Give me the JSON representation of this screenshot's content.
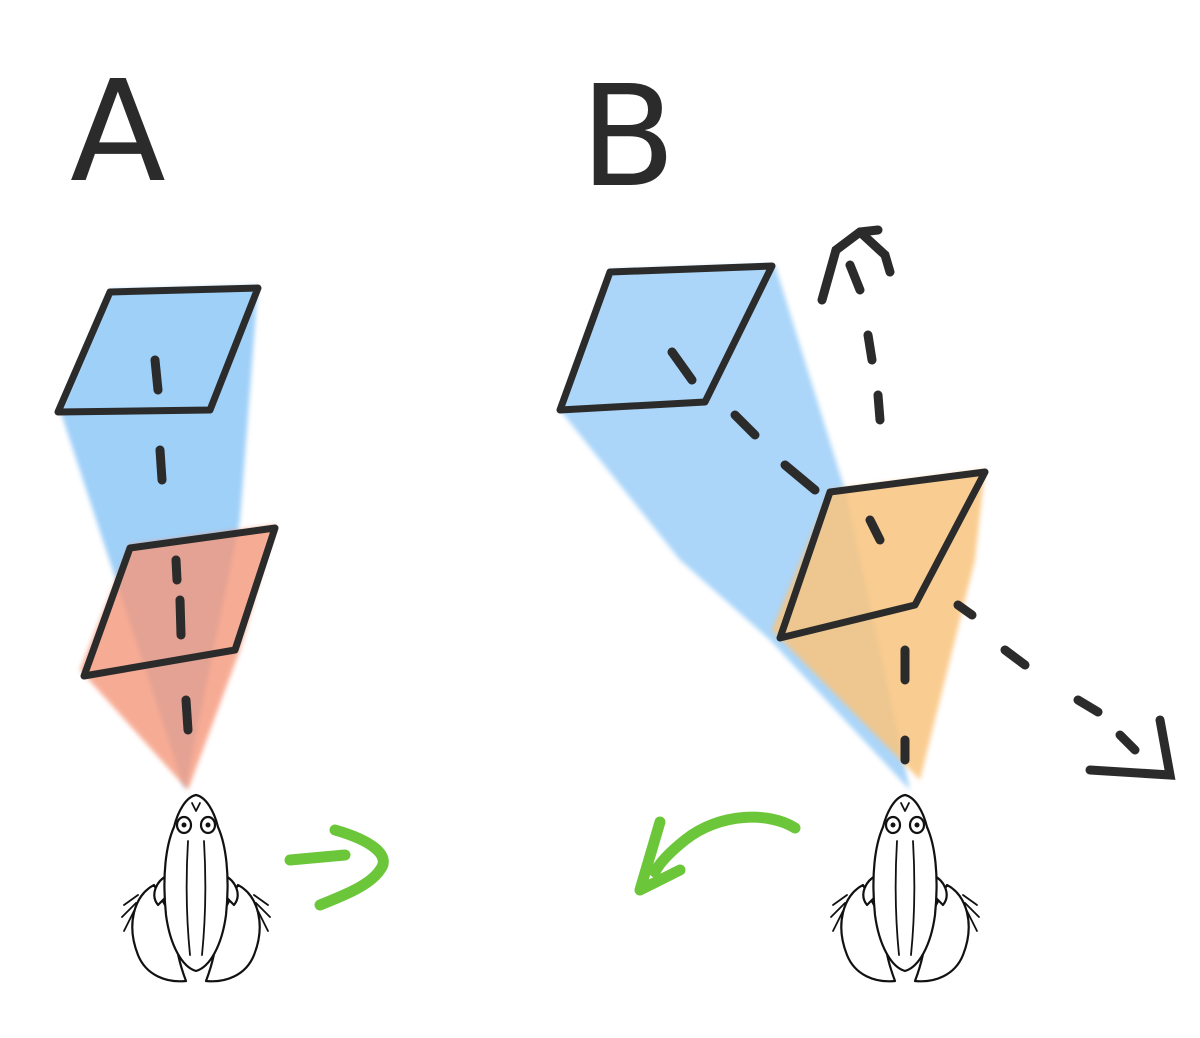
{
  "panels": [
    {
      "id": "A",
      "label": "A"
    },
    {
      "id": "B",
      "label": "B"
    }
  ],
  "colors": {
    "far_target": "#8fc8f7",
    "near_target_A": "#f5977a",
    "near_target_B": "#f9c47e",
    "turn_arrow": "#6cc63a",
    "ink": "#2b2b2b"
  },
  "icons": [
    "frog-icon",
    "frog-icon",
    "right-turn-arrow",
    "left-turn-arrow"
  ]
}
